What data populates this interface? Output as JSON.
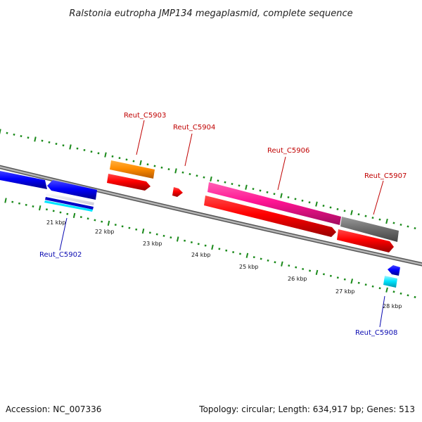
{
  "map": {
    "title": "Ralstonia eutropha JMP134 megaplasmid, complete sequence",
    "accession": "Accession: NC_007336",
    "summary": "Topology: circular; Length: 634,917 bp; Genes: 513"
  },
  "scale": {
    "ticks": [
      "21 kbp",
      "22 kbp",
      "23 kbp",
      "24 kbp",
      "25 kbp",
      "26 kbp",
      "27 kbp",
      "28 kbp"
    ]
  },
  "genes": [
    {
      "name": "Reut_C5902",
      "color": "#0b0bb2"
    },
    {
      "name": "Reut_C5903",
      "color": "#c00000"
    },
    {
      "name": "Reut_C5904",
      "color": "#c00000"
    },
    {
      "name": "Reut_C5906",
      "color": "#c00000"
    },
    {
      "name": "Reut_C5907",
      "color": "#c00000"
    },
    {
      "name": "Reut_C5908",
      "color": "#0b0bb2"
    }
  ],
  "colors": {
    "backbone": "#8a8a8a",
    "tick_marks": "#1a8a1a",
    "forward_cds": "#ff0000",
    "reverse_cds": "#0000ff",
    "orange_feature": "#ff8c00",
    "magenta_feature": "#ff1493",
    "gray_feature": "#666666",
    "cyan_feature": "#00e5ff"
  }
}
